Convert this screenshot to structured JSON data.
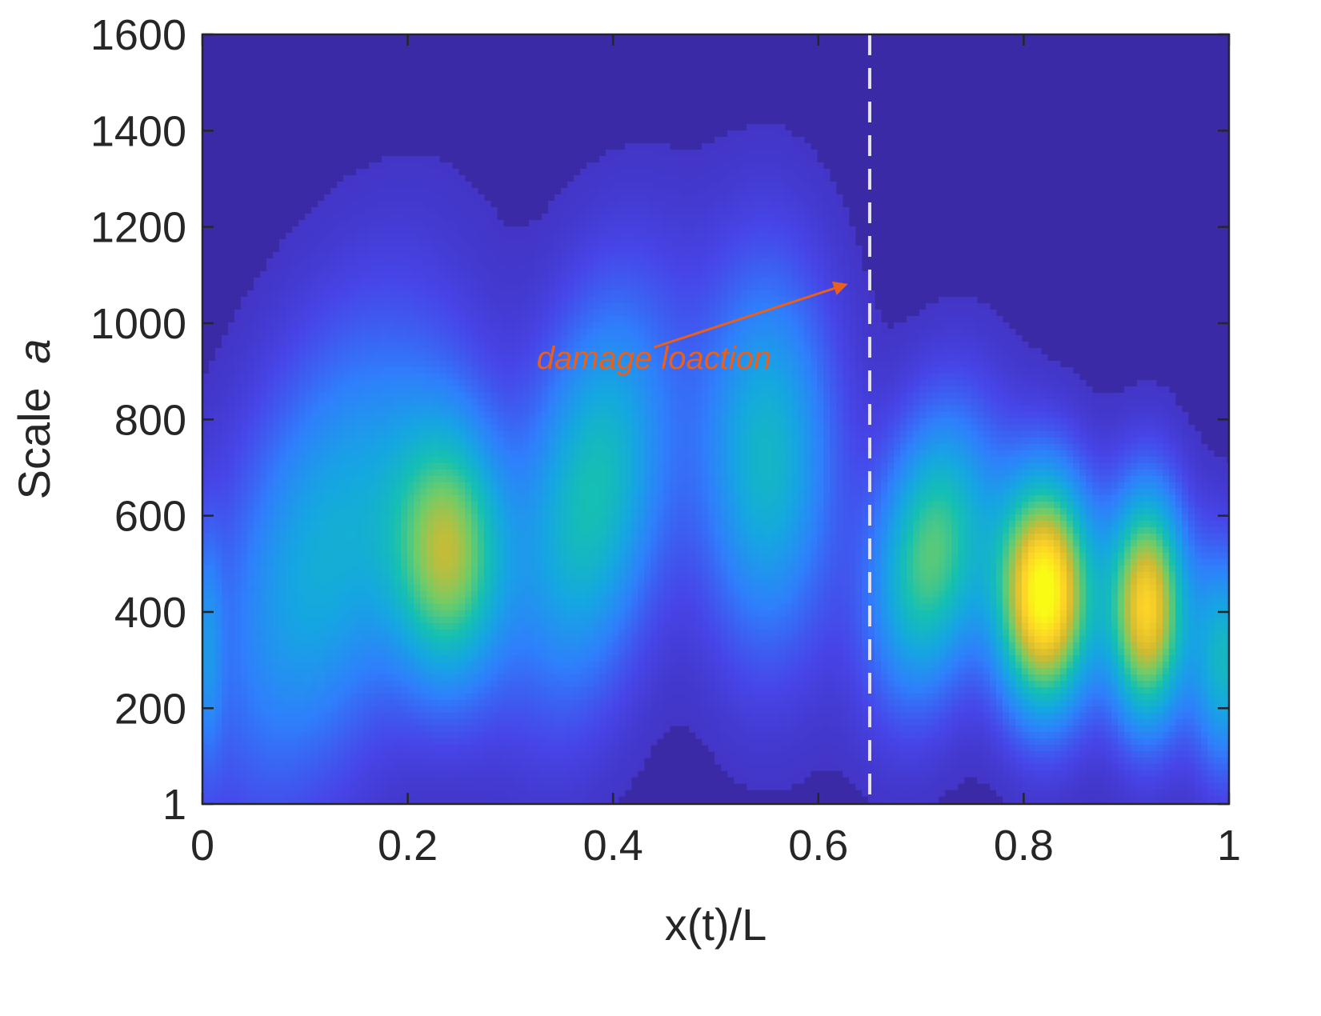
{
  "chart_data": {
    "type": "heatmap",
    "title": "",
    "xlabel": "x(t)/L",
    "ylabel": {
      "prefix": "Scale",
      "symbol": "a"
    },
    "xlim": [
      0,
      1
    ],
    "ylim": [
      1,
      1600
    ],
    "x_ticks": [
      0,
      0.2,
      0.4,
      0.6,
      0.8,
      1
    ],
    "x_tick_labels": [
      "0",
      "0.2",
      "0.4",
      "0.6",
      "0.8",
      "1"
    ],
    "y_ticks": [
      1,
      200,
      400,
      600,
      800,
      1000,
      1200,
      1400,
      1600
    ],
    "y_tick_labels": [
      "1",
      "200",
      "400",
      "600",
      "800",
      "1000",
      "1200",
      "1400",
      "1600"
    ],
    "colormap": "parula",
    "colormap_stops": [
      "#3e26a8",
      "#4745e8",
      "#2f7ffc",
      "#15a6e2",
      "#15c0b1",
      "#6ccc6a",
      "#d2ba30",
      "#fdd327",
      "#f9fb15"
    ],
    "background_color": "#3a2aa6",
    "grid": false,
    "blobs": [
      {
        "x": 0.12,
        "y": 520,
        "x_spread": 0.068,
        "y_spread": 330,
        "intensity": 0.36,
        "tilt": 0.0001
      },
      {
        "x": 0.24,
        "y": 520,
        "x_spread": 0.038,
        "y_spread": 190,
        "intensity": 0.6,
        "tilt": 0.0
      },
      {
        "x": 0.38,
        "y": 640,
        "x_spread": 0.048,
        "y_spread": 280,
        "intensity": 0.45,
        "tilt": 6e-05
      },
      {
        "x": 0.55,
        "y": 720,
        "x_spread": 0.045,
        "y_spread": 270,
        "intensity": 0.4,
        "tilt": 0.0
      },
      {
        "x": 0.71,
        "y": 520,
        "x_spread": 0.038,
        "y_spread": 200,
        "intensity": 0.55,
        "tilt": 5e-05
      },
      {
        "x": 0.82,
        "y": 440,
        "x_spread": 0.032,
        "y_spread": 165,
        "intensity": 0.98,
        "tilt": 0.0
      },
      {
        "x": 0.92,
        "y": 410,
        "x_spread": 0.026,
        "y_spread": 165,
        "intensity": 0.82,
        "tilt": 0.0
      },
      {
        "x": 0.995,
        "y": 300,
        "x_spread": 0.022,
        "y_spread": 160,
        "intensity": 0.4,
        "tilt": 0.0
      },
      {
        "x": 0.005,
        "y": 330,
        "x_spread": 0.01,
        "y_spread": 170,
        "intensity": 0.18,
        "tilt": 0.0
      }
    ],
    "damage_line": {
      "x": 0.65,
      "style": "dashed",
      "color": "#e8e4f2"
    },
    "annotation": {
      "text": "damage loaction",
      "text_x": 0.44,
      "text_y": 905,
      "arrow_from": {
        "x": 0.44,
        "y": 950
      },
      "arrow_to": {
        "x": 0.65,
        "y": 1100
      },
      "color": "#e8601c"
    }
  }
}
